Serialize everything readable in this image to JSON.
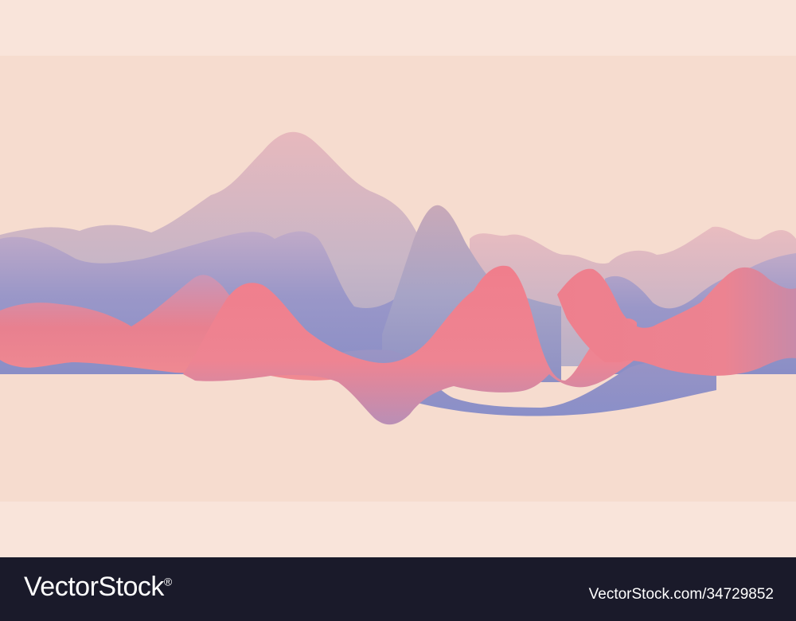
{
  "image": {
    "background_color": "#f6dccf",
    "band_color": "#f9e4da",
    "palette": {
      "peach": "#f6dccf",
      "dusty_pink": "#e8b8bd",
      "lavender_blue": "#8f91c6",
      "coral_pink": "#ee7f8d",
      "slate_gray": "#a9a6c0"
    }
  },
  "watermark": {
    "brand": "VectorStock",
    "registered_mark": "®",
    "credit": "VectorStock.com/34729852",
    "footer_color": "#1a1a2a"
  }
}
